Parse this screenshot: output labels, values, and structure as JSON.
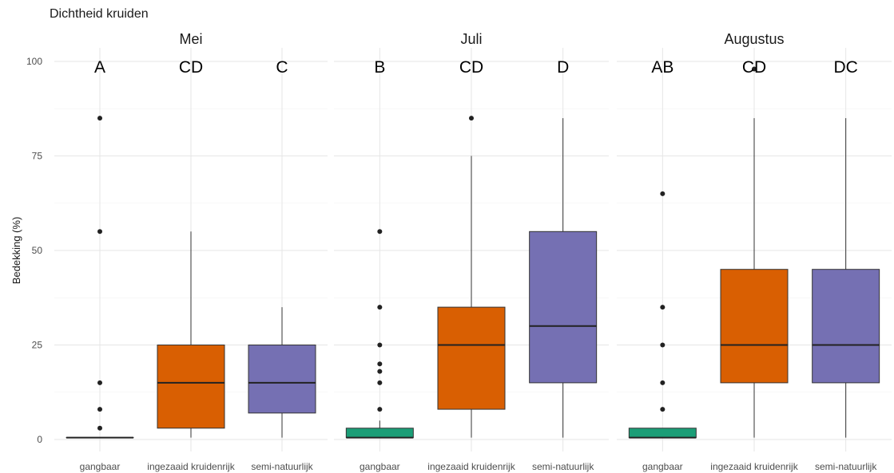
{
  "chart_data": {
    "type": "box",
    "title": "Dichtheid kruiden",
    "ylabel": "Bedekking (%)",
    "xlabel": "",
    "ylim": [
      0,
      100
    ],
    "yticks": [
      "0",
      "25",
      "50",
      "75",
      "100"
    ],
    "categories": [
      "gangbaar",
      "ingezaaid kruidenrijk",
      "semi-natuurlijk"
    ],
    "colors": {
      "gangbaar": "#1b9e77",
      "ingezaaid kruidenrijk": "#d95f02",
      "semi-natuurlijk": "#7570b3"
    },
    "grid": true,
    "legend": "none",
    "facets": [
      {
        "name": "Mei",
        "groups": [
          {
            "category": "gangbaar",
            "letter": "A",
            "whisker_low": 0.5,
            "q1": 0.5,
            "median": 0.5,
            "q3": 0.5,
            "whisker_high": 0.5,
            "outliers": [
              3,
              8,
              15,
              55,
              85
            ]
          },
          {
            "category": "ingezaaid kruidenrijk",
            "letter": "CD",
            "whisker_low": 0.5,
            "q1": 3,
            "median": 15,
            "q3": 25,
            "whisker_high": 55,
            "outliers": []
          },
          {
            "category": "semi-natuurlijk",
            "letter": "C",
            "whisker_low": 0.5,
            "q1": 7,
            "median": 15,
            "q3": 25,
            "whisker_high": 35,
            "outliers": []
          }
        ]
      },
      {
        "name": "Juli",
        "groups": [
          {
            "category": "gangbaar",
            "letter": "B",
            "whisker_low": 0.5,
            "q1": 0.5,
            "median": 0.5,
            "q3": 3,
            "whisker_high": 5,
            "outliers": [
              8,
              15,
              18,
              20,
              25,
              35,
              55
            ]
          },
          {
            "category": "ingezaaid kruidenrijk",
            "letter": "CD",
            "whisker_low": 0.5,
            "q1": 8,
            "median": 25,
            "q3": 35,
            "whisker_high": 75,
            "outliers": [
              85
            ]
          },
          {
            "category": "semi-natuurlijk",
            "letter": "D",
            "whisker_low": 0.5,
            "q1": 15,
            "median": 30,
            "q3": 55,
            "whisker_high": 85,
            "outliers": []
          }
        ]
      },
      {
        "name": "Augustus",
        "groups": [
          {
            "category": "gangbaar",
            "letter": "AB",
            "whisker_low": 0.5,
            "q1": 0.5,
            "median": 0.5,
            "q3": 3,
            "whisker_high": 3,
            "outliers": [
              8,
              15,
              25,
              35,
              65
            ]
          },
          {
            "category": "ingezaaid kruidenrijk",
            "letter": "CD",
            "whisker_low": 0.5,
            "q1": 15,
            "median": 25,
            "q3": 45,
            "whisker_high": 85,
            "outliers": [
              98
            ]
          },
          {
            "category": "semi-natuurlijk",
            "letter": "DC",
            "whisker_low": 0.5,
            "q1": 15,
            "median": 25,
            "q3": 45,
            "whisker_high": 85,
            "outliers": []
          }
        ]
      }
    ]
  }
}
